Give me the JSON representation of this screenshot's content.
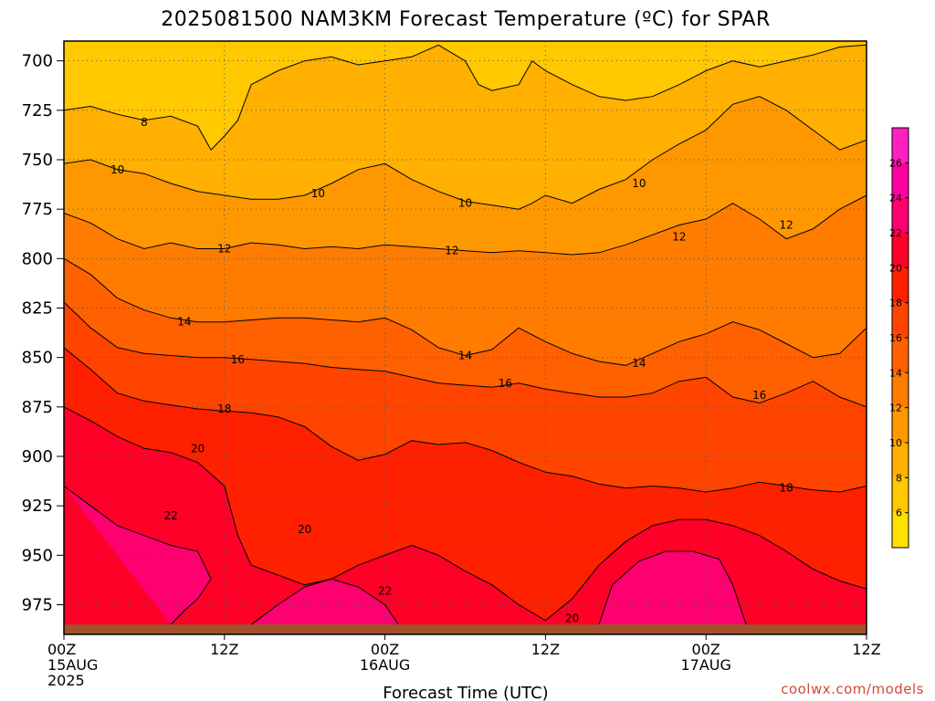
{
  "chart_data": {
    "type": "heatmap",
    "title": "2025081500 NAM3KM Forecast Temperature (ºC) for SPAR",
    "xlabel": "Forecast Time (UTC)",
    "ylabel": "",
    "credit": "coolwx.com/models",
    "x_ticks": [
      {
        "hour": 0,
        "lines": [
          "00Z",
          "15AUG",
          "2025"
        ]
      },
      {
        "hour": 12,
        "lines": [
          "12Z"
        ]
      },
      {
        "hour": 24,
        "lines": [
          "00Z",
          "16AUG"
        ]
      },
      {
        "hour": 36,
        "lines": [
          "12Z"
        ]
      },
      {
        "hour": 48,
        "lines": [
          "00Z",
          "17AUG"
        ]
      },
      {
        "hour": 60,
        "lines": [
          "12Z"
        ]
      }
    ],
    "xlim": [
      0,
      60
    ],
    "y_ticks": [
      700,
      725,
      750,
      775,
      800,
      825,
      850,
      875,
      900,
      925,
      950,
      975
    ],
    "ylim": [
      990,
      690
    ],
    "colorbar": {
      "min": 4,
      "max": 28,
      "ticks": [
        6,
        8,
        10,
        12,
        14,
        16,
        18,
        20,
        22,
        24,
        26
      ],
      "bands": [
        {
          "from": 4,
          "to": 6,
          "color": "#ffe000"
        },
        {
          "from": 6,
          "to": 8,
          "color": "#ffc800"
        },
        {
          "from": 8,
          "to": 10,
          "color": "#ffb000"
        },
        {
          "from": 10,
          "to": 12,
          "color": "#ff9800"
        },
        {
          "from": 12,
          "to": 14,
          "color": "#ff7c00"
        },
        {
          "from": 14,
          "to": 16,
          "color": "#ff6000"
        },
        {
          "from": 16,
          "to": 18,
          "color": "#ff4400"
        },
        {
          "from": 18,
          "to": 20,
          "color": "#ff2000"
        },
        {
          "from": 20,
          "to": 22,
          "color": "#ff0028"
        },
        {
          "from": 22,
          "to": 24,
          "color": "#ff0070"
        },
        {
          "from": 24,
          "to": 26,
          "color": "#ff00a0"
        },
        {
          "from": 26,
          "to": 28,
          "color": "#ff20c0"
        }
      ]
    },
    "ground_color": "#a0522d",
    "ground_top_hpa": 985,
    "isotherms": [
      {
        "value": 8,
        "points": [
          [
            0,
            725
          ],
          [
            2,
            723
          ],
          [
            4,
            727
          ],
          [
            6,
            730
          ],
          [
            8,
            728
          ],
          [
            10,
            733
          ],
          [
            11,
            745
          ],
          [
            12,
            738
          ],
          [
            13,
            730
          ],
          [
            14,
            712
          ],
          [
            16,
            705
          ],
          [
            18,
            700
          ],
          [
            20,
            698
          ],
          [
            22,
            702
          ],
          [
            24,
            700
          ],
          [
            26,
            698
          ],
          [
            28,
            692
          ],
          [
            30,
            700
          ],
          [
            31,
            712
          ],
          [
            32,
            715
          ],
          [
            34,
            712
          ],
          [
            35,
            700
          ],
          [
            36,
            705
          ],
          [
            38,
            712
          ],
          [
            40,
            718
          ],
          [
            42,
            720
          ],
          [
            44,
            718
          ],
          [
            46,
            712
          ],
          [
            48,
            705
          ],
          [
            50,
            700
          ],
          [
            52,
            703
          ],
          [
            54,
            700
          ],
          [
            56,
            697
          ],
          [
            58,
            693
          ],
          [
            60,
            692
          ]
        ]
      },
      {
        "value": 10,
        "points": [
          [
            0,
            752
          ],
          [
            2,
            750
          ],
          [
            4,
            755
          ],
          [
            6,
            757
          ],
          [
            8,
            762
          ],
          [
            10,
            766
          ],
          [
            12,
            768
          ],
          [
            14,
            770
          ],
          [
            16,
            770
          ],
          [
            18,
            768
          ],
          [
            20,
            762
          ],
          [
            22,
            755
          ],
          [
            24,
            752
          ],
          [
            26,
            760
          ],
          [
            28,
            766
          ],
          [
            30,
            771
          ],
          [
            32,
            773
          ],
          [
            34,
            775
          ],
          [
            35,
            772
          ],
          [
            36,
            768
          ],
          [
            38,
            772
          ],
          [
            40,
            765
          ],
          [
            42,
            760
          ],
          [
            44,
            750
          ],
          [
            46,
            742
          ],
          [
            48,
            735
          ],
          [
            50,
            722
          ],
          [
            52,
            718
          ],
          [
            54,
            725
          ],
          [
            56,
            735
          ],
          [
            58,
            745
          ],
          [
            60,
            740
          ]
        ]
      },
      {
        "value": 12,
        "points": [
          [
            0,
            777
          ],
          [
            2,
            782
          ],
          [
            4,
            790
          ],
          [
            6,
            795
          ],
          [
            8,
            792
          ],
          [
            10,
            795
          ],
          [
            12,
            795
          ],
          [
            14,
            792
          ],
          [
            16,
            793
          ],
          [
            18,
            795
          ],
          [
            20,
            794
          ],
          [
            22,
            795
          ],
          [
            24,
            793
          ],
          [
            26,
            794
          ],
          [
            28,
            795
          ],
          [
            30,
            796
          ],
          [
            32,
            797
          ],
          [
            34,
            796
          ],
          [
            36,
            797
          ],
          [
            38,
            798
          ],
          [
            40,
            797
          ],
          [
            42,
            793
          ],
          [
            44,
            788
          ],
          [
            46,
            783
          ],
          [
            48,
            780
          ],
          [
            50,
            772
          ],
          [
            52,
            780
          ],
          [
            54,
            790
          ],
          [
            56,
            785
          ],
          [
            58,
            775
          ],
          [
            60,
            768
          ]
        ]
      },
      {
        "value": 14,
        "points": [
          [
            0,
            800
          ],
          [
            2,
            808
          ],
          [
            4,
            820
          ],
          [
            6,
            826
          ],
          [
            8,
            830
          ],
          [
            10,
            832
          ],
          [
            12,
            832
          ],
          [
            14,
            831
          ],
          [
            16,
            830
          ],
          [
            18,
            830
          ],
          [
            20,
            831
          ],
          [
            22,
            832
          ],
          [
            24,
            830
          ],
          [
            26,
            836
          ],
          [
            28,
            845
          ],
          [
            30,
            849
          ],
          [
            32,
            846
          ],
          [
            34,
            835
          ],
          [
            36,
            842
          ],
          [
            38,
            848
          ],
          [
            40,
            852
          ],
          [
            42,
            854
          ],
          [
            44,
            848
          ],
          [
            46,
            842
          ],
          [
            48,
            838
          ],
          [
            50,
            832
          ],
          [
            52,
            836
          ],
          [
            54,
            843
          ],
          [
            56,
            850
          ],
          [
            58,
            848
          ],
          [
            60,
            835
          ]
        ]
      },
      {
        "value": 16,
        "points": [
          [
            0,
            822
          ],
          [
            2,
            835
          ],
          [
            4,
            845
          ],
          [
            6,
            848
          ],
          [
            8,
            849
          ],
          [
            10,
            850
          ],
          [
            12,
            850
          ],
          [
            14,
            851
          ],
          [
            16,
            852
          ],
          [
            18,
            853
          ],
          [
            20,
            855
          ],
          [
            22,
            856
          ],
          [
            24,
            857
          ],
          [
            26,
            860
          ],
          [
            28,
            863
          ],
          [
            30,
            864
          ],
          [
            32,
            865
          ],
          [
            34,
            863
          ],
          [
            36,
            866
          ],
          [
            38,
            868
          ],
          [
            40,
            870
          ],
          [
            42,
            870
          ],
          [
            44,
            868
          ],
          [
            46,
            862
          ],
          [
            48,
            860
          ],
          [
            50,
            870
          ],
          [
            52,
            873
          ],
          [
            54,
            868
          ],
          [
            56,
            862
          ],
          [
            58,
            870
          ],
          [
            60,
            875
          ]
        ]
      },
      {
        "value": 18,
        "points": [
          [
            0,
            845
          ],
          [
            2,
            856
          ],
          [
            4,
            868
          ],
          [
            6,
            872
          ],
          [
            8,
            874
          ],
          [
            10,
            876
          ],
          [
            12,
            877
          ],
          [
            14,
            878
          ],
          [
            16,
            880
          ],
          [
            18,
            885
          ],
          [
            20,
            895
          ],
          [
            22,
            902
          ],
          [
            24,
            899
          ],
          [
            26,
            892
          ],
          [
            28,
            894
          ],
          [
            30,
            893
          ],
          [
            32,
            897
          ],
          [
            34,
            903
          ],
          [
            36,
            908
          ],
          [
            38,
            910
          ],
          [
            40,
            914
          ],
          [
            42,
            916
          ],
          [
            44,
            915
          ],
          [
            46,
            916
          ],
          [
            48,
            918
          ],
          [
            50,
            916
          ],
          [
            52,
            913
          ],
          [
            54,
            915
          ],
          [
            56,
            917
          ],
          [
            58,
            918
          ],
          [
            60,
            915
          ]
        ]
      },
      {
        "value": 20,
        "points": [
          [
            0,
            875
          ],
          [
            2,
            882
          ],
          [
            4,
            890
          ],
          [
            6,
            896
          ],
          [
            8,
            898
          ],
          [
            10,
            903
          ],
          [
            12,
            915
          ],
          [
            13,
            940
          ],
          [
            14,
            955
          ],
          [
            16,
            960
          ],
          [
            18,
            965
          ],
          [
            20,
            962
          ],
          [
            22,
            955
          ],
          [
            24,
            950
          ],
          [
            26,
            945
          ],
          [
            28,
            950
          ],
          [
            30,
            958
          ],
          [
            32,
            965
          ],
          [
            34,
            975
          ],
          [
            36,
            983
          ],
          [
            38,
            972
          ],
          [
            40,
            955
          ],
          [
            42,
            943
          ],
          [
            44,
            935
          ],
          [
            46,
            932
          ],
          [
            48,
            932
          ],
          [
            50,
            935
          ],
          [
            52,
            940
          ],
          [
            54,
            948
          ],
          [
            56,
            957
          ],
          [
            58,
            963
          ],
          [
            60,
            967
          ]
        ]
      },
      {
        "value": 22,
        "points": [
          [
            0,
            915
          ],
          [
            2,
            925
          ],
          [
            4,
            935
          ],
          [
            6,
            940
          ],
          [
            8,
            945
          ],
          [
            10,
            948
          ],
          [
            11,
            962
          ],
          [
            10,
            972
          ],
          [
            9,
            978
          ],
          [
            8,
            985
          ]
        ]
      },
      {
        "value": 22,
        "points": [
          [
            14,
            985
          ],
          [
            16,
            975
          ],
          [
            18,
            966
          ],
          [
            20,
            962
          ],
          [
            22,
            966
          ],
          [
            24,
            975
          ],
          [
            25,
            985
          ]
        ]
      },
      {
        "value": 22,
        "points": [
          [
            40,
            985
          ],
          [
            41,
            965
          ],
          [
            43,
            953
          ],
          [
            45,
            948
          ],
          [
            47,
            948
          ],
          [
            49,
            952
          ],
          [
            50,
            965
          ],
          [
            51,
            985
          ]
        ]
      }
    ],
    "contour_labels": [
      {
        "text": "8",
        "x": 6.0,
        "p": 731
      },
      {
        "text": "10",
        "x": 4.0,
        "p": 755
      },
      {
        "text": "10",
        "x": 19.0,
        "p": 767
      },
      {
        "text": "10",
        "x": 30.0,
        "p": 772
      },
      {
        "text": "10",
        "x": 43.0,
        "p": 762
      },
      {
        "text": "12",
        "x": 12.0,
        "p": 795
      },
      {
        "text": "12",
        "x": 29.0,
        "p": 796
      },
      {
        "text": "12",
        "x": 46.0,
        "p": 789
      },
      {
        "text": "12",
        "x": 54.0,
        "p": 783
      },
      {
        "text": "14",
        "x": 9.0,
        "p": 832
      },
      {
        "text": "14",
        "x": 30.0,
        "p": 849
      },
      {
        "text": "14",
        "x": 43.0,
        "p": 853
      },
      {
        "text": "16",
        "x": 13.0,
        "p": 851
      },
      {
        "text": "16",
        "x": 33.0,
        "p": 863
      },
      {
        "text": "16",
        "x": 52.0,
        "p": 869
      },
      {
        "text": "18",
        "x": 12.0,
        "p": 876
      },
      {
        "text": "18",
        "x": 54.0,
        "p": 916
      },
      {
        "text": "20",
        "x": 10.0,
        "p": 896
      },
      {
        "text": "20",
        "x": 18.0,
        "p": 937
      },
      {
        "text": "20",
        "x": 38.0,
        "p": 982
      },
      {
        "text": "22",
        "x": 8.0,
        "p": 930
      },
      {
        "text": "22",
        "x": 24.0,
        "p": 968
      }
    ]
  }
}
